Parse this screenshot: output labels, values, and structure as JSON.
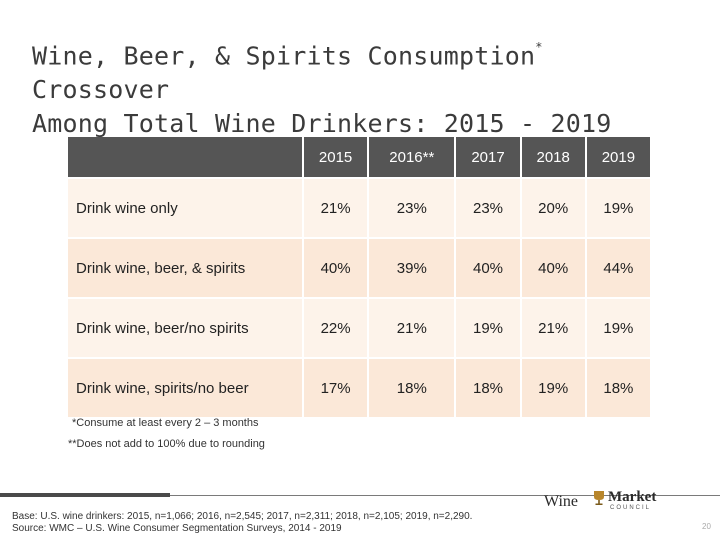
{
  "title": {
    "line1": "Wine, Beer, & Spirits Consumption",
    "marker": "*",
    "line1_end": "Crossover",
    "line2": "Among Total Wine Drinkers: 2015 - 2019"
  },
  "table": {
    "columns": [
      "2015",
      "2016**",
      "2017",
      "2018",
      "2019"
    ],
    "rows": [
      {
        "label": "Drink wine only",
        "values": [
          "21%",
          "23%",
          "23%",
          "20%",
          "19%"
        ]
      },
      {
        "label": "Drink wine, beer, & spirits",
        "values": [
          "40%",
          "39%",
          "40%",
          "40%",
          "44%"
        ]
      },
      {
        "label": "Drink wine, beer/no spirits",
        "values": [
          "22%",
          "21%",
          "19%",
          "21%",
          "19%"
        ]
      },
      {
        "label": "Drink wine, spirits/no beer",
        "values": [
          "17%",
          "18%",
          "18%",
          "19%",
          "18%"
        ]
      }
    ]
  },
  "footnotes": {
    "consume": "*Consume at least every 2 – 3 months",
    "rounding": "**Does not add to 100% due to rounding"
  },
  "base": {
    "line1": "Base: U.S. wine drinkers: 2015, n=1,066; 2016, n=2,545; 2017, n=2,311; 2018, n=2,105; 2019, n=2,290.",
    "line2": "Source: WMC – U.S. Wine Consumer Segmentation Surveys, 2014 - 2019"
  },
  "logo": {
    "word1": "Wine",
    "word2": "Market",
    "word3": "COUNCIL",
    "icon": "wine-glass-icon"
  },
  "colors": {
    "header": "#555555",
    "row_shade": "#fbe8d8",
    "row_light": "#fdf3ea"
  },
  "page_number": "20"
}
